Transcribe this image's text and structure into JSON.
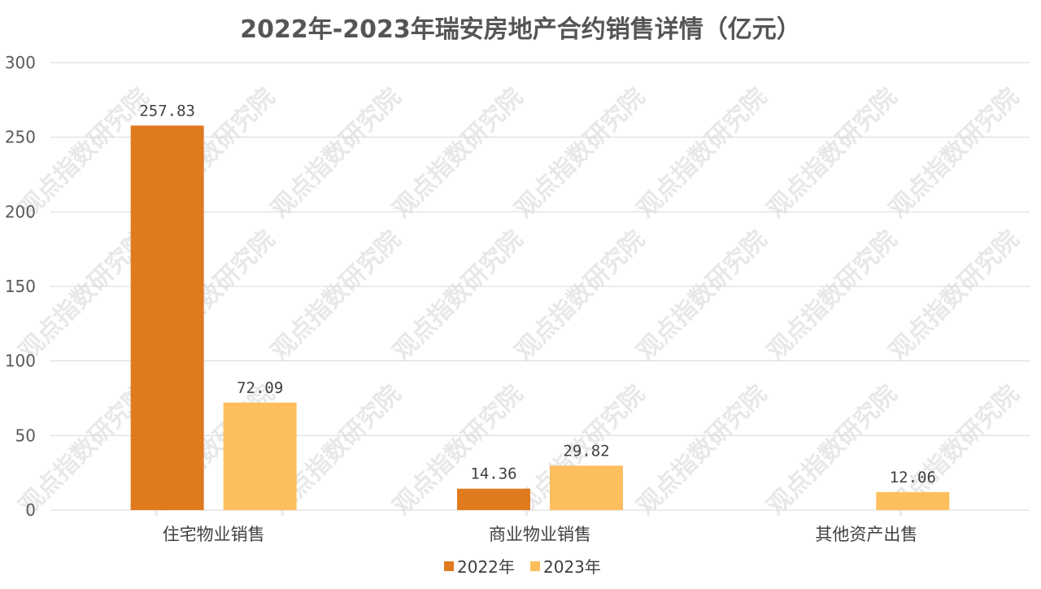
{
  "chart_data": {
    "type": "bar",
    "title": "2022年-2023年瑞安房地产合约销售详情（亿元）",
    "categories": [
      "住宅物业销售",
      "商业物业销售",
      "其他资产出售"
    ],
    "series": [
      {
        "name": "2022年",
        "values": [
          257.83,
          14.36,
          null
        ],
        "color": "#e07a1f"
      },
      {
        "name": "2023年",
        "values": [
          72.09,
          29.82,
          12.06
        ],
        "color": "#fdbe5e"
      }
    ],
    "data_labels": [
      [
        "257.83",
        "14.36",
        null
      ],
      [
        "72.09",
        "29.82",
        "12.06"
      ]
    ],
    "ylim": [
      0,
      300
    ],
    "yticks": [
      0,
      50,
      100,
      150,
      200,
      250,
      300
    ],
    "xlabel": "",
    "ylabel": "",
    "grid": true,
    "legend_position": "bottom"
  },
  "watermark": "观点指数研究院"
}
